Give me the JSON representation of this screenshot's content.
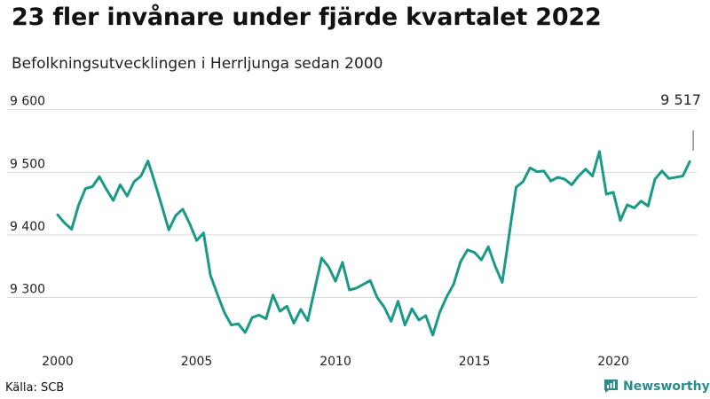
{
  "header": {
    "title": "23 fler invånare under fjärde kvartalet 2022",
    "subtitle": "Befolkningsutvecklingen i Herrljunga sedan 2000"
  },
  "footer": {
    "source": "Källa: SCB",
    "brand": "Newsworthy",
    "brand_icon": "bar-chart-logo-icon"
  },
  "colors": {
    "line": "#1a9a86",
    "grid": "#d9d9d9",
    "brand": "#2b8c8c"
  },
  "chart_data": {
    "type": "line",
    "title": "23 fler invånare under fjärde kvartalet 2022",
    "subtitle": "Befolkningsutvecklingen i Herrljunga sedan 2000",
    "xlabel": "",
    "ylabel": "",
    "xlim": [
      2000,
      2023
    ],
    "ylim": [
      9220,
      9625
    ],
    "grid": true,
    "x_ticks": [
      2000,
      2005,
      2010,
      2015,
      2020
    ],
    "x_tick_labels": [
      "2000",
      "2005",
      "2010",
      "2015",
      "2020"
    ],
    "y_ticks": [
      9300,
      9400,
      9500,
      9600
    ],
    "y_tick_labels": [
      "9 300",
      "9 400",
      "9 500",
      "9 600"
    ],
    "annotation": {
      "label": "9 517",
      "x": 2022.875,
      "y": 9517
    },
    "series": [
      {
        "x": [
          2000.0,
          2000.25,
          2000.5,
          2000.75,
          2001.0,
          2001.25,
          2001.5,
          2001.75,
          2002.0,
          2002.25,
          2002.5,
          2002.75,
          2003.0,
          2003.25,
          2003.5,
          2003.75,
          2004.0,
          2004.25,
          2004.5,
          2004.75,
          2005.0,
          2005.25,
          2005.5,
          2005.75,
          2006.0,
          2006.25,
          2006.5,
          2006.75,
          2007.0,
          2007.25,
          2007.5,
          2007.75,
          2008.0,
          2008.25,
          2008.5,
          2008.75,
          2009.0,
          2009.25,
          2009.5,
          2009.75,
          2010.0,
          2010.25,
          2010.5,
          2010.75,
          2011.0,
          2011.25,
          2011.5,
          2011.75,
          2012.0,
          2012.25,
          2012.5,
          2012.75,
          2013.0,
          2013.25,
          2013.5,
          2013.75,
          2014.0,
          2014.25,
          2014.5,
          2014.75,
          2015.0,
          2015.25,
          2015.5,
          2015.75,
          2016.0,
          2016.25,
          2016.5,
          2016.75,
          2017.0,
          2017.25,
          2017.5,
          2017.75,
          2018.0,
          2018.25,
          2018.5,
          2018.75,
          2019.0,
          2019.25,
          2019.5,
          2019.75,
          2020.0,
          2020.25,
          2020.5,
          2020.75,
          2021.0,
          2021.25,
          2021.5,
          2021.75,
          2022.0,
          2022.25,
          2022.5,
          2022.75
        ],
        "values": [
          9432,
          9419,
          9409,
          9447,
          9474,
          9477,
          9493,
          9473,
          9455,
          9480,
          9462,
          9485,
          9494,
          9518,
          9483,
          9446,
          9408,
          9431,
          9441,
          9418,
          9391,
          9403,
          9335,
          9305,
          9276,
          9256,
          9258,
          9244,
          9268,
          9272,
          9266,
          9304,
          9278,
          9286,
          9259,
          9281,
          9263,
          9313,
          9363,
          9349,
          9326,
          9356,
          9312,
          9315,
          9321,
          9327,
          9300,
          9285,
          9262,
          9294,
          9256,
          9282,
          9264,
          9271,
          9240,
          9276,
          9301,
          9321,
          9357,
          9376,
          9372,
          9360,
          9381,
          9350,
          9324,
          9400,
          9476,
          9485,
          9507,
          9501,
          9502,
          9486,
          9492,
          9489,
          9480,
          9494,
          9505,
          9494,
          9533,
          9465,
          9468,
          9423,
          9448,
          9443,
          9454,
          9446,
          9489,
          9502,
          9490,
          9492,
          9494,
          9517
        ]
      }
    ]
  }
}
